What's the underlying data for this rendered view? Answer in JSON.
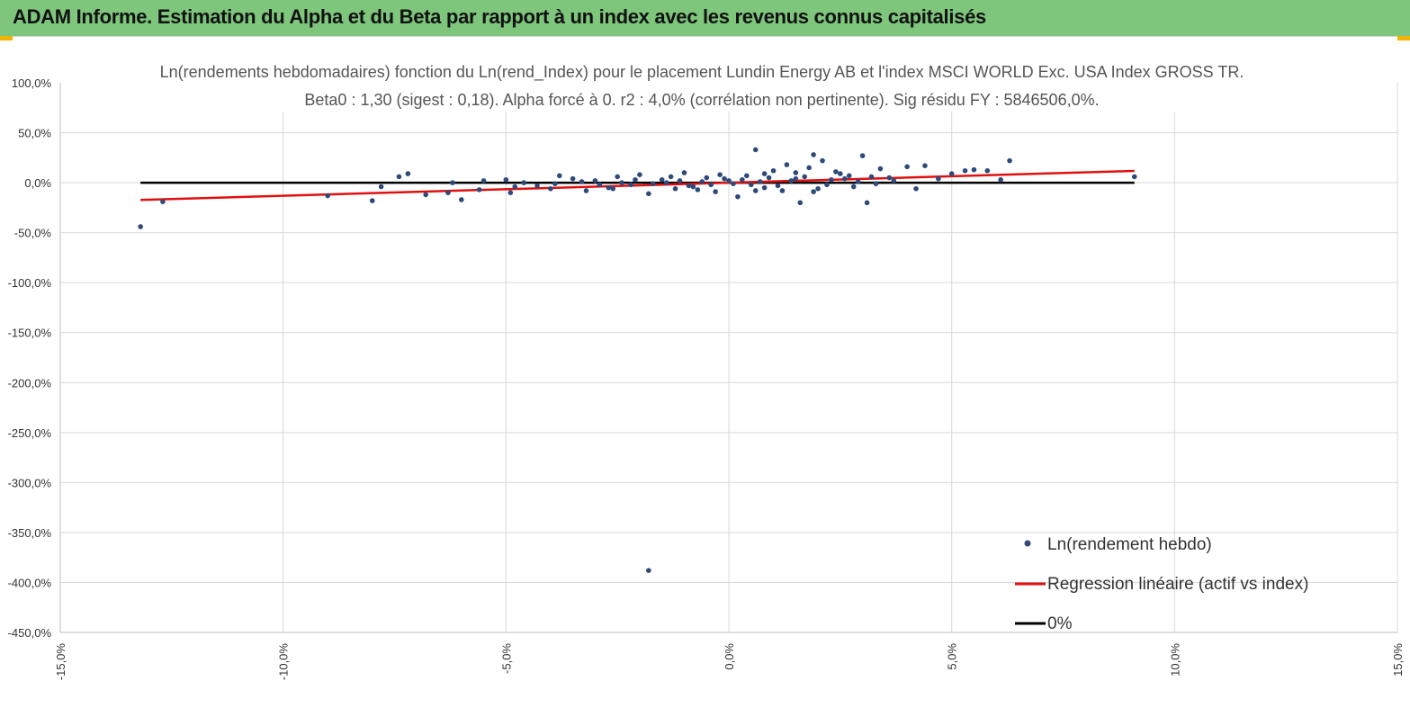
{
  "banner": {
    "title": "ADAM Informe. Estimation du Alpha et du Beta par rapport à un index avec les revenus connus capitalisés"
  },
  "colors": {
    "banner_bg": "#7dc67c",
    "points": "#2e4a7a",
    "regression": "#e01010",
    "zero_line": "#000000",
    "grid": "#d9d9d9",
    "corner_marks": "#f0b400"
  },
  "chart_data": {
    "type": "scatter",
    "title": "Ln(rendements hebdomadaires) fonction du Ln(rend_Index) pour le placement Lundin Energy AB et l'index MSCI WORLD Exc. USA Index GROSS TR.",
    "subtitle": "Beta0 : 1,30 (sigest : 0,18). Alpha forcé à 0. r2 : 4,0% (corrélation non pertinente). Sig résidu FY : 5846506,0%.",
    "xlabel": "",
    "ylabel": "",
    "xlim": [
      -15,
      15
    ],
    "ylim": [
      -450,
      100
    ],
    "grid": true,
    "legend_position": "bottom-right",
    "x_ticks": [
      "-15,0%",
      "-10,0%",
      "-5,0%",
      "0,0%",
      "5,0%",
      "10,0%",
      "15,0%"
    ],
    "y_ticks": [
      "100,0%",
      "50,0%",
      "0,0%",
      "-50,0%",
      "-100,0%",
      "-150,0%",
      "-200,0%",
      "-250,0%",
      "-300,0%",
      "-350,0%",
      "-400,0%",
      "-450,0%"
    ],
    "series": [
      {
        "name": "Ln(rendement hebdo)",
        "kind": "points",
        "points": [
          [
            -13.2,
            -44
          ],
          [
            -12.7,
            -19
          ],
          [
            -9.0,
            -13
          ],
          [
            -8.0,
            -18
          ],
          [
            -7.8,
            -4
          ],
          [
            -7.4,
            6
          ],
          [
            -7.2,
            9
          ],
          [
            -6.8,
            -12
          ],
          [
            -6.3,
            -10
          ],
          [
            -6.2,
            0
          ],
          [
            -6.0,
            -17
          ],
          [
            -5.6,
            -7
          ],
          [
            -5.5,
            2
          ],
          [
            -5.0,
            3
          ],
          [
            -4.9,
            -10
          ],
          [
            -4.8,
            -4
          ],
          [
            -4.6,
            0
          ],
          [
            -4.3,
            -3
          ],
          [
            -4.0,
            -6
          ],
          [
            -3.8,
            7
          ],
          [
            -3.5,
            4
          ],
          [
            -3.2,
            -8
          ],
          [
            -3.0,
            2
          ],
          [
            -2.7,
            -5
          ],
          [
            -2.5,
            6
          ],
          [
            -2.2,
            -2
          ],
          [
            -2.0,
            8
          ],
          [
            -1.8,
            -11
          ],
          [
            -1.5,
            3
          ],
          [
            -1.2,
            -6
          ],
          [
            -1.0,
            10
          ],
          [
            -0.8,
            -4
          ],
          [
            -0.5,
            5
          ],
          [
            -0.3,
            -9
          ],
          [
            0.0,
            2
          ],
          [
            0.2,
            -14
          ],
          [
            0.4,
            7
          ],
          [
            0.6,
            33
          ],
          [
            0.8,
            -5
          ],
          [
            1.0,
            12
          ],
          [
            1.2,
            -8
          ],
          [
            1.3,
            18
          ],
          [
            1.5,
            4
          ],
          [
            1.6,
            -20
          ],
          [
            1.8,
            15
          ],
          [
            1.9,
            28
          ],
          [
            2.0,
            -6
          ],
          [
            2.1,
            22
          ],
          [
            2.3,
            3
          ],
          [
            2.5,
            9
          ],
          [
            2.8,
            -4
          ],
          [
            3.0,
            27
          ],
          [
            3.1,
            -20
          ],
          [
            3.2,
            6
          ],
          [
            3.4,
            14
          ],
          [
            3.7,
            2
          ],
          [
            4.0,
            16
          ],
          [
            4.2,
            -6
          ],
          [
            4.4,
            17
          ],
          [
            4.7,
            4
          ],
          [
            5.0,
            9
          ],
          [
            5.3,
            12
          ],
          [
            5.5,
            13
          ],
          [
            5.8,
            12
          ],
          [
            6.1,
            3
          ],
          [
            6.3,
            22
          ],
          [
            9.1,
            6
          ],
          [
            -1.8,
            -388
          ],
          [
            -3.9,
            -1
          ],
          [
            -3.3,
            1
          ],
          [
            -2.9,
            -2
          ],
          [
            -2.4,
            0
          ],
          [
            -2.1,
            3
          ],
          [
            -1.7,
            -1
          ],
          [
            -1.4,
            0
          ],
          [
            -1.1,
            2
          ],
          [
            -0.9,
            -3
          ],
          [
            -0.6,
            1
          ],
          [
            -0.4,
            -2
          ],
          [
            -0.1,
            4
          ],
          [
            0.1,
            -1
          ],
          [
            0.3,
            3
          ],
          [
            0.5,
            -2
          ],
          [
            0.7,
            1
          ],
          [
            0.9,
            5
          ],
          [
            1.1,
            -3
          ],
          [
            1.4,
            2
          ],
          [
            1.7,
            6
          ],
          [
            2.2,
            -2
          ],
          [
            2.6,
            4
          ],
          [
            2.9,
            1
          ],
          [
            3.3,
            -1
          ],
          [
            3.6,
            5
          ],
          [
            -0.2,
            8
          ],
          [
            0.8,
            9
          ],
          [
            1.5,
            10
          ],
          [
            -1.3,
            6
          ],
          [
            -0.7,
            -7
          ],
          [
            0.6,
            -8
          ],
          [
            1.9,
            -9
          ],
          [
            2.4,
            11
          ],
          [
            -2.6,
            -6
          ],
          [
            2.7,
            7
          ]
        ]
      },
      {
        "name": "Regression linéaire (actif vs index)",
        "kind": "line",
        "points": [
          [
            -13.2,
            -17.2
          ],
          [
            9.1,
            11.8
          ]
        ]
      },
      {
        "name": "0%",
        "kind": "line",
        "points": [
          [
            -13.2,
            0
          ],
          [
            9.1,
            0
          ]
        ]
      }
    ]
  }
}
